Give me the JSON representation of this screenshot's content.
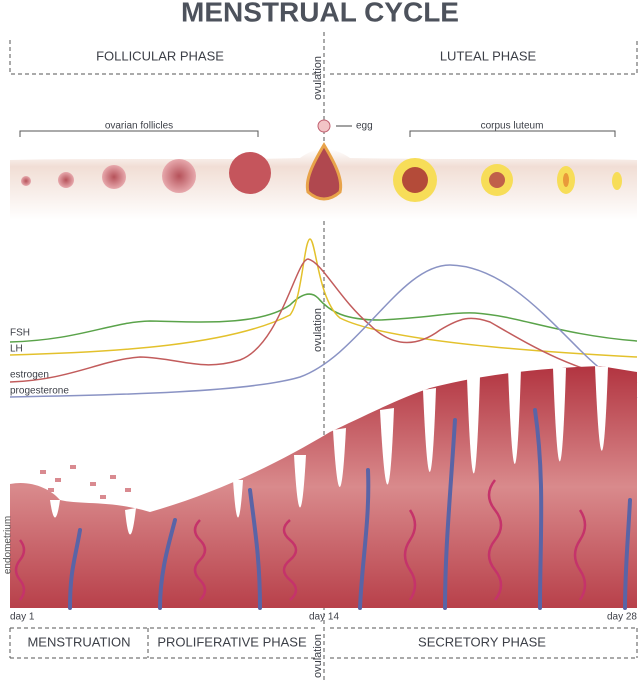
{
  "header": {
    "title": "MENSTRUAL CYCLE"
  },
  "top_phases": [
    "FOLLICULAR PHASE",
    "LUTEAL PHASE"
  ],
  "ovulation_labels": [
    "ovulation",
    "ovulation",
    "ovulation"
  ],
  "ovary": {
    "ovarian_follicles": "ovarian follicles",
    "egg": "egg",
    "corpus_luteum": "corpus luteum"
  },
  "hormones": [
    "FSH",
    "LH",
    "estrogen",
    "progesterone"
  ],
  "endometrium_label": "endometrium",
  "days": [
    "day 1",
    "day 14",
    "day 28"
  ],
  "bottom_phases": [
    "MENSTRUATION",
    "PROLIFERATIVE PHASE",
    "SECRETORY PHASE"
  ]
}
